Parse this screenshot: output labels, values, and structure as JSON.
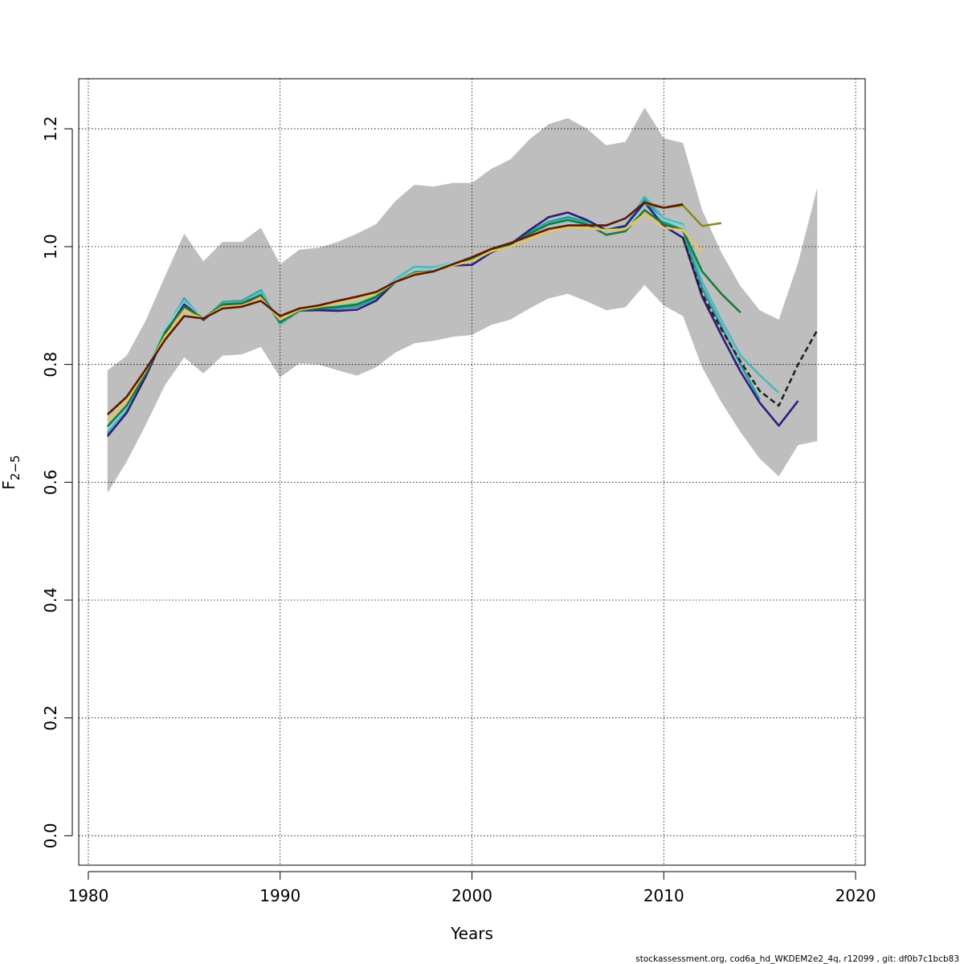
{
  "chart_data": {
    "type": "line",
    "xlabel": "Years",
    "ylabel": {
      "main": "F",
      "sub": "2−5"
    },
    "xlim": [
      1979.5,
      2020.5
    ],
    "ylim": [
      -0.05,
      1.285
    ],
    "xticks": [
      1980,
      1990,
      2000,
      2010,
      2020
    ],
    "yticks": [
      0.0,
      0.2,
      0.4,
      0.6,
      0.8,
      1.0,
      1.2
    ],
    "ytick_labels": [
      "0.0",
      "0.2",
      "0.4",
      "0.6",
      "0.8",
      "1.0",
      "1.2"
    ],
    "grid": true,
    "footer": "stockassessment.org, cod6a_hd_WKDEM2e2_4q, r12099 , git: df0b7c1bcb83",
    "band": {
      "color": "#bebebe",
      "x": [
        1981,
        1982,
        1983,
        1984,
        1985,
        1986,
        1987,
        1988,
        1989,
        1990,
        1991,
        1992,
        1993,
        1994,
        1995,
        1996,
        1997,
        1998,
        1999,
        2000,
        2001,
        2002,
        2003,
        2004,
        2005,
        2006,
        2007,
        2008,
        2009,
        2010,
        2011,
        2012,
        2013,
        2014,
        2015,
        2016,
        2017,
        2018
      ],
      "upper": [
        0.79,
        0.815,
        0.875,
        0.95,
        1.022,
        0.975,
        1.008,
        1.008,
        1.032,
        0.97,
        0.995,
        0.998,
        1.008,
        1.022,
        1.038,
        1.077,
        1.105,
        1.102,
        1.108,
        1.108,
        1.132,
        1.148,
        1.182,
        1.208,
        1.218,
        1.2,
        1.172,
        1.178,
        1.236,
        1.184,
        1.176,
        1.062,
        0.99,
        0.933,
        0.892,
        0.876,
        0.972,
        1.1
      ],
      "lower": [
        0.582,
        0.635,
        0.698,
        0.765,
        0.812,
        0.785,
        0.815,
        0.817,
        0.83,
        0.778,
        0.802,
        0.8,
        0.79,
        0.781,
        0.795,
        0.82,
        0.836,
        0.84,
        0.847,
        0.85,
        0.867,
        0.876,
        0.895,
        0.912,
        0.92,
        0.907,
        0.892,
        0.897,
        0.935,
        0.9,
        0.882,
        0.795,
        0.736,
        0.685,
        0.64,
        0.61,
        0.663,
        0.67
      ]
    },
    "series": [
      {
        "color": "#1f9e9e",
        "dashed": false,
        "x": [
          1981,
          1982,
          1983,
          1984,
          1985,
          1986,
          1987,
          1988,
          1989,
          1990,
          1991,
          1992,
          1993,
          1994,
          1995,
          1996,
          1997,
          1998,
          1999,
          2000,
          2001,
          2002,
          2003,
          2004,
          2005,
          2006,
          2007,
          2008,
          2009,
          2010,
          2011,
          2012,
          2013,
          2014,
          2015
        ],
        "values": [
          0.682,
          0.72,
          0.782,
          0.858,
          0.912,
          0.875,
          0.906,
          0.908,
          0.926,
          0.868,
          0.891,
          0.892,
          0.895,
          0.898,
          0.912,
          0.942,
          0.958,
          0.958,
          0.97,
          0.98,
          0.993,
          1.005,
          1.025,
          1.042,
          1.05,
          1.042,
          1.028,
          1.032,
          1.08,
          1.042,
          1.028,
          0.93,
          0.865,
          0.8,
          0.74
        ]
      },
      {
        "color": "#4fb6bf",
        "dashed": false,
        "x": [
          1981,
          1982,
          1983,
          1984,
          1985,
          1986,
          1987,
          1988,
          1989,
          1990,
          1991,
          1992,
          1993,
          1994,
          1995,
          1996,
          1997,
          1998,
          1999,
          2000,
          2001,
          2002,
          2003,
          2004,
          2005,
          2006,
          2007,
          2008,
          2009,
          2010,
          2011,
          2012,
          2013,
          2014,
          2015,
          2016
        ],
        "values": [
          0.685,
          0.722,
          0.785,
          0.86,
          0.91,
          0.876,
          0.904,
          0.906,
          0.924,
          0.868,
          0.892,
          0.895,
          0.898,
          0.902,
          0.915,
          0.945,
          0.966,
          0.965,
          0.972,
          0.98,
          0.994,
          1.004,
          1.022,
          1.04,
          1.046,
          1.04,
          1.03,
          1.035,
          1.085,
          1.048,
          1.038,
          0.94,
          0.875,
          0.815,
          0.782,
          0.752
        ]
      },
      {
        "color": "#8fcfcf",
        "dashed": false,
        "x": [
          1981,
          1982,
          1983,
          1984,
          1985,
          1986,
          1987,
          1988,
          1989,
          1990,
          1991,
          1992,
          1993,
          1994,
          1995,
          1996,
          1997,
          1998,
          1999,
          2000,
          2001,
          2002,
          2003,
          2004,
          2005,
          2006,
          2007,
          2008,
          2009,
          2010,
          2011,
          2012
        ],
        "values": [
          0.69,
          0.728,
          0.79,
          0.862,
          0.905,
          0.878,
          0.902,
          0.904,
          0.92,
          0.872,
          0.893,
          0.897,
          0.9,
          0.905,
          0.918,
          0.942,
          0.96,
          0.962,
          0.972,
          0.98,
          0.994,
          1.004,
          1.02,
          1.036,
          1.042,
          1.038,
          1.03,
          1.034,
          1.07,
          1.045,
          1.035,
          0.955
        ]
      },
      {
        "color": "#2d1e7e",
        "dashed": false,
        "x": [
          1981,
          1982,
          1983,
          1984,
          1985,
          1986,
          1987,
          1988,
          1989,
          1990,
          1991,
          1992,
          1993,
          1994,
          1995,
          1996,
          1997,
          1998,
          1999,
          2000,
          2001,
          2002,
          2003,
          2004,
          2005,
          2006,
          2007,
          2008,
          2009,
          2010,
          2011,
          2012,
          2013,
          2014,
          2015,
          2016,
          2017
        ],
        "values": [
          0.678,
          0.718,
          0.78,
          0.852,
          0.902,
          0.876,
          0.9,
          0.902,
          0.918,
          0.872,
          0.892,
          0.892,
          0.891,
          0.893,
          0.908,
          0.94,
          0.956,
          0.958,
          0.968,
          0.969,
          0.99,
          1.004,
          1.028,
          1.05,
          1.058,
          1.045,
          1.028,
          1.035,
          1.075,
          1.035,
          1.015,
          0.915,
          0.85,
          0.788,
          0.735,
          0.696,
          0.738
        ]
      },
      {
        "color": "#1a7a3a",
        "dashed": false,
        "x": [
          1981,
          1982,
          1983,
          1984,
          1985,
          1986,
          1987,
          1988,
          1989,
          1990,
          1991,
          1992,
          1993,
          1994,
          1995,
          1996,
          1997,
          1998,
          1999,
          2000,
          2001,
          2002,
          2003,
          2004,
          2005,
          2006,
          2007,
          2008,
          2009,
          2010,
          2011,
          2012,
          2013,
          2014
        ],
        "values": [
          0.695,
          0.73,
          0.785,
          0.855,
          0.898,
          0.878,
          0.902,
          0.904,
          0.918,
          0.872,
          0.892,
          0.895,
          0.898,
          0.902,
          0.915,
          0.94,
          0.956,
          0.958,
          0.97,
          0.978,
          0.994,
          1.004,
          1.022,
          1.038,
          1.045,
          1.038,
          1.02,
          1.026,
          1.062,
          1.038,
          1.028,
          0.958,
          0.92,
          0.888
        ]
      },
      {
        "color": "#e8c45a",
        "dashed": false,
        "x": [
          1981,
          1982,
          1983,
          1984,
          1985,
          1986,
          1987,
          1988,
          1989,
          1990,
          1991,
          1992,
          1993,
          1994,
          1995,
          1996,
          1997,
          1998,
          1999,
          2000,
          2001,
          2002,
          2003,
          2004,
          2005,
          2006,
          2007,
          2008,
          2009,
          2010,
          2011,
          2012
        ],
        "values": [
          0.705,
          0.738,
          0.79,
          0.848,
          0.89,
          0.878,
          0.898,
          0.9,
          0.912,
          0.876,
          0.893,
          0.898,
          0.904,
          0.91,
          0.92,
          0.94,
          0.954,
          0.958,
          0.968,
          0.976,
          0.992,
          1.0,
          1.012,
          1.026,
          1.032,
          1.032,
          1.028,
          1.03,
          1.055,
          1.032,
          1.028,
          0.99
        ]
      },
      {
        "color": "#8a8a1f",
        "dashed": false,
        "x": [
          2009,
          2010,
          2011,
          2012,
          2013
        ],
        "values": [
          1.072,
          1.066,
          1.07,
          1.035,
          1.04
        ]
      },
      {
        "color": "#5c1a05",
        "dashed": false,
        "x": [
          1981,
          1982,
          1983,
          1984,
          1985,
          1986,
          1987,
          1988,
          1989,
          1990,
          1991,
          1992,
          1993,
          1994,
          1995,
          1996,
          1997,
          1998,
          1999,
          2000,
          2001,
          2002,
          2003,
          2004,
          2005,
          2006,
          2007,
          2008,
          2009,
          2010,
          2011
        ],
        "values": [
          0.715,
          0.745,
          0.792,
          0.842,
          0.882,
          0.878,
          0.895,
          0.898,
          0.908,
          0.882,
          0.895,
          0.9,
          0.908,
          0.915,
          0.923,
          0.94,
          0.952,
          0.958,
          0.97,
          0.982,
          0.996,
          1.006,
          1.018,
          1.03,
          1.036,
          1.036,
          1.036,
          1.048,
          1.075,
          1.066,
          1.072
        ]
      },
      {
        "color": "#222222",
        "dashed": true,
        "x": [
          2011,
          2012,
          2013,
          2014,
          2015,
          2016,
          2017,
          2018
        ],
        "values": [
          1.015,
          0.92,
          0.86,
          0.805,
          0.755,
          0.73,
          0.8,
          0.858
        ]
      }
    ]
  }
}
